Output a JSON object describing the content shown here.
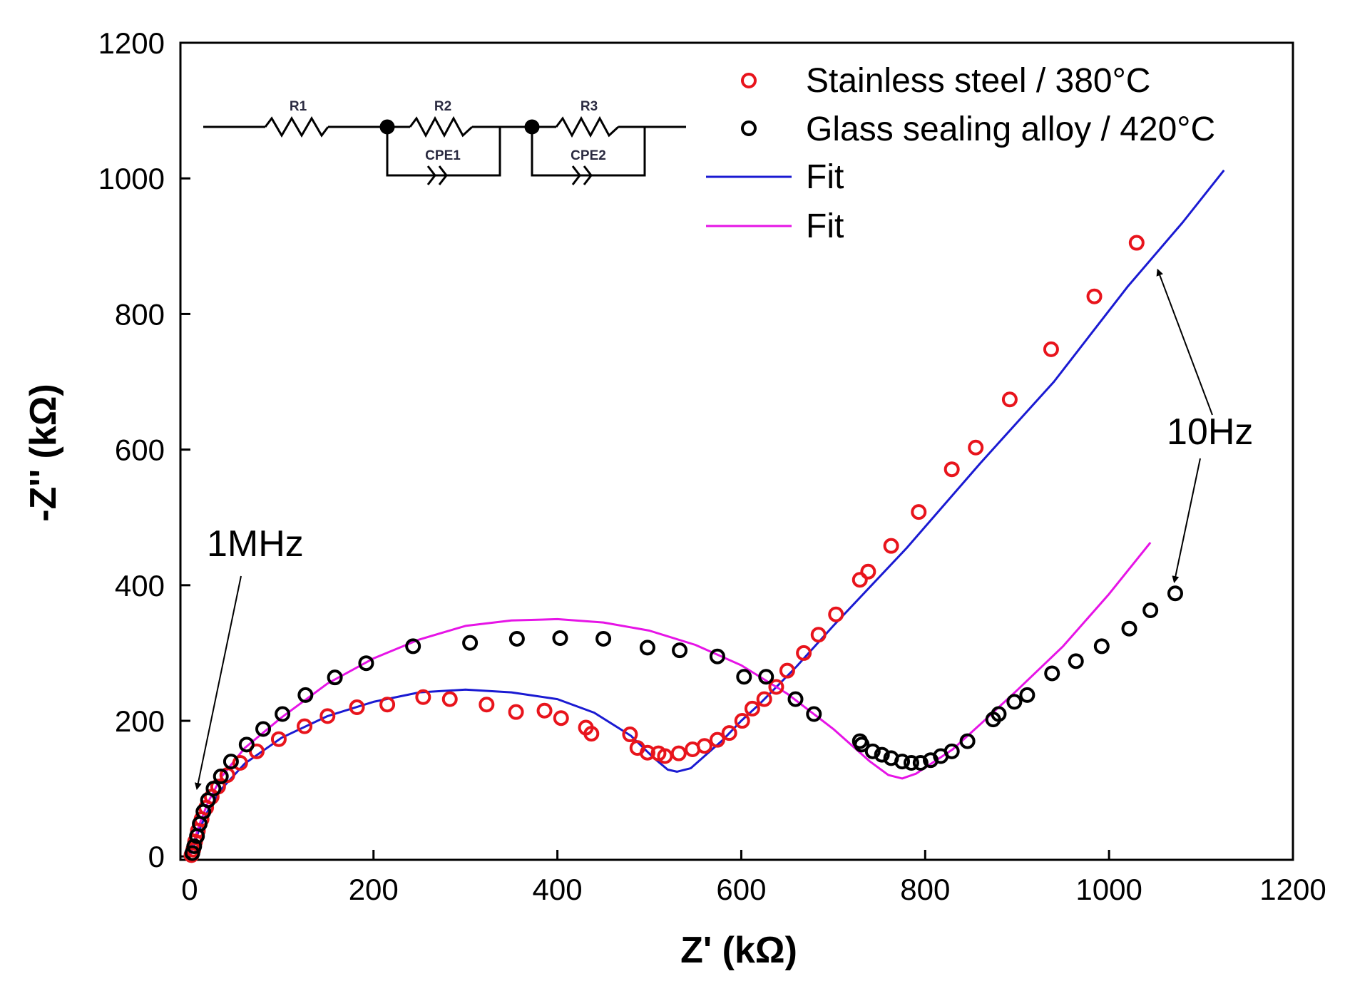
{
  "chart_data": {
    "type": "scatter",
    "xlabel": "Z' (kΩ)",
    "ylabel": "-Z'' (kΩ)",
    "xlim": [
      -10,
      1200
    ],
    "ylim": [
      -5,
      1200
    ],
    "xticks": [
      0,
      200,
      400,
      600,
      800,
      1000,
      1200
    ],
    "yticks": [
      0,
      200,
      400,
      600,
      800,
      1000,
      1200
    ],
    "grid": false,
    "legend_position": "top-right",
    "series": [
      {
        "name": "Stainless steel / 380°C",
        "kind": "scatter",
        "color": "#e8141c",
        "marker": "open-circle",
        "points": [
          [
            2,
            2
          ],
          [
            4,
            10
          ],
          [
            6,
            22
          ],
          [
            9,
            38
          ],
          [
            13,
            55
          ],
          [
            18,
            72
          ],
          [
            24,
            88
          ],
          [
            31,
            103
          ],
          [
            41,
            120
          ],
          [
            55,
            138
          ],
          [
            73,
            155
          ],
          [
            97,
            173
          ],
          [
            125,
            192
          ],
          [
            150,
            207
          ],
          [
            182,
            220
          ],
          [
            215,
            224
          ],
          [
            254,
            235
          ],
          [
            283,
            232
          ],
          [
            323,
            224
          ],
          [
            355,
            213
          ],
          [
            386,
            215
          ],
          [
            404,
            204
          ],
          [
            431,
            190
          ],
          [
            437,
            181
          ],
          [
            479,
            180
          ],
          [
            487,
            160
          ],
          [
            498,
            153
          ],
          [
            510,
            152
          ],
          [
            517,
            148
          ],
          [
            532,
            152
          ],
          [
            547,
            158
          ],
          [
            560,
            163
          ],
          [
            574,
            172
          ],
          [
            587,
            182
          ],
          [
            601,
            200
          ],
          [
            612,
            218
          ],
          [
            625,
            232
          ],
          [
            638,
            250
          ],
          [
            650,
            274
          ],
          [
            668,
            300
          ],
          [
            684,
            327
          ],
          [
            703,
            357
          ],
          [
            729,
            408
          ],
          [
            738,
            420
          ],
          [
            763,
            458
          ],
          [
            793,
            508
          ],
          [
            829,
            571
          ],
          [
            855,
            603
          ],
          [
            892,
            674
          ],
          [
            937,
            748
          ],
          [
            984,
            826
          ],
          [
            1030,
            905
          ]
        ]
      },
      {
        "name": "Glass sealing alloy / 420°C",
        "kind": "scatter",
        "color": "#000000",
        "marker": "open-circle",
        "points": [
          [
            3,
            5
          ],
          [
            5,
            15
          ],
          [
            8,
            30
          ],
          [
            11,
            48
          ],
          [
            15,
            66
          ],
          [
            20,
            83
          ],
          [
            26,
            100
          ],
          [
            34,
            118
          ],
          [
            45,
            140
          ],
          [
            62,
            165
          ],
          [
            80,
            188
          ],
          [
            101,
            210
          ],
          [
            126,
            238
          ],
          [
            158,
            264
          ],
          [
            192,
            285
          ],
          [
            243,
            310
          ],
          [
            305,
            315
          ],
          [
            356,
            321
          ],
          [
            403,
            322
          ],
          [
            450,
            321
          ],
          [
            498,
            308
          ],
          [
            533,
            304
          ],
          [
            574,
            295
          ],
          [
            603,
            265
          ],
          [
            627,
            265
          ],
          [
            659,
            232
          ],
          [
            679,
            210
          ],
          [
            729,
            170
          ],
          [
            731,
            165
          ],
          [
            743,
            155
          ],
          [
            753,
            150
          ],
          [
            763,
            145
          ],
          [
            775,
            140
          ],
          [
            785,
            138
          ],
          [
            795,
            138
          ],
          [
            806,
            142
          ],
          [
            817,
            148
          ],
          [
            829,
            155
          ],
          [
            846,
            170
          ],
          [
            874,
            202
          ],
          [
            880,
            210
          ],
          [
            897,
            228
          ],
          [
            911,
            238
          ],
          [
            938,
            270
          ],
          [
            964,
            288
          ],
          [
            992,
            310
          ],
          [
            1022,
            336
          ],
          [
            1045,
            363
          ],
          [
            1072,
            388
          ]
        ]
      },
      {
        "name": "Fit",
        "kind": "line",
        "color": "#1a1ad2",
        "points": [
          [
            0,
            0
          ],
          [
            4,
            15
          ],
          [
            10,
            38
          ],
          [
            20,
            68
          ],
          [
            35,
            100
          ],
          [
            60,
            137
          ],
          [
            100,
            175
          ],
          [
            150,
            207
          ],
          [
            200,
            228
          ],
          [
            250,
            242
          ],
          [
            300,
            246
          ],
          [
            350,
            242
          ],
          [
            400,
            232
          ],
          [
            440,
            212
          ],
          [
            480,
            178
          ],
          [
            505,
            145
          ],
          [
            520,
            128
          ],
          [
            530,
            125
          ],
          [
            545,
            130
          ],
          [
            560,
            148
          ],
          [
            580,
            172
          ],
          [
            600,
            200
          ],
          [
            620,
            225
          ],
          [
            660,
            280
          ],
          [
            700,
            340
          ],
          [
            780,
            455
          ],
          [
            860,
            580
          ],
          [
            940,
            700
          ],
          [
            1020,
            840
          ],
          [
            1080,
            935
          ],
          [
            1125,
            1012
          ]
        ]
      },
      {
        "name": "Fit",
        "kind": "line",
        "color": "#e614e6",
        "points": [
          [
            0,
            0
          ],
          [
            4,
            18
          ],
          [
            10,
            45
          ],
          [
            20,
            80
          ],
          [
            35,
            118
          ],
          [
            60,
            160
          ],
          [
            100,
            205
          ],
          [
            150,
            255
          ],
          [
            200,
            292
          ],
          [
            250,
            320
          ],
          [
            300,
            340
          ],
          [
            350,
            348
          ],
          [
            400,
            350
          ],
          [
            450,
            345
          ],
          [
            500,
            333
          ],
          [
            550,
            312
          ],
          [
            600,
            282
          ],
          [
            650,
            240
          ],
          [
            700,
            188
          ],
          [
            740,
            140
          ],
          [
            760,
            120
          ],
          [
            775,
            115
          ],
          [
            790,
            122
          ],
          [
            810,
            140
          ],
          [
            830,
            158
          ],
          [
            860,
            195
          ],
          [
            900,
            245
          ],
          [
            950,
            310
          ],
          [
            1000,
            387
          ],
          [
            1045,
            463
          ]
        ]
      }
    ],
    "annotations": [
      {
        "text": "1MHz",
        "target": [
          8,
          100
        ]
      },
      {
        "text": "10Hz",
        "targets": [
          [
            1053,
            865
          ],
          [
            1071,
            405
          ]
        ]
      }
    ]
  },
  "legend": [
    {
      "label": "Stainless steel / 380°C",
      "color": "#e8141c",
      "marker": "open-circle"
    },
    {
      "label": "Glass sealing alloy / 420°C",
      "color": "#000000",
      "marker": "open-circle"
    },
    {
      "label": "Fit",
      "color": "#1a1ad2",
      "marker": "line"
    },
    {
      "label": "Fit",
      "color": "#e614e6",
      "marker": "line"
    }
  ],
  "circuit": {
    "labels": [
      "R1",
      "R2",
      "R3",
      "CPE1",
      "CPE2"
    ]
  }
}
